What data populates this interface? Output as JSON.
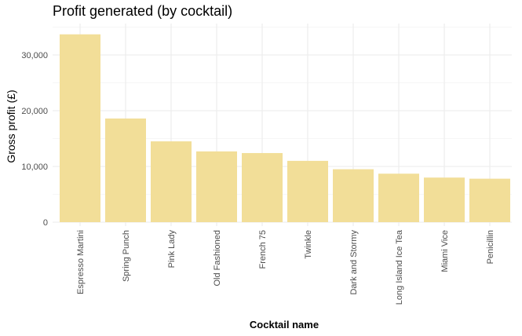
{
  "chart_data": {
    "type": "bar",
    "title": "Profit generated (by cocktail)",
    "xlabel": "Cocktail name",
    "ylabel": "Gross profit (£)",
    "categories": [
      "Espresso Martini",
      "Spring Punch",
      "Pink Lady",
      "Old Fashioned",
      "French 75",
      "Twinkle",
      "Dark and Stormy",
      "Long Island Ice Tea",
      "Miami Vice",
      "Penicillin"
    ],
    "values": [
      33700,
      18600,
      14500,
      12700,
      12400,
      11000,
      9500,
      8700,
      8000,
      7800
    ],
    "ylim": [
      0,
      35000
    ],
    "yticks": [
      0,
      10000,
      20000,
      30000
    ],
    "ytick_labels": [
      "0",
      "10,000",
      "20,000",
      "30,000"
    ],
    "bar_color": "#f2de98",
    "grid": true
  }
}
